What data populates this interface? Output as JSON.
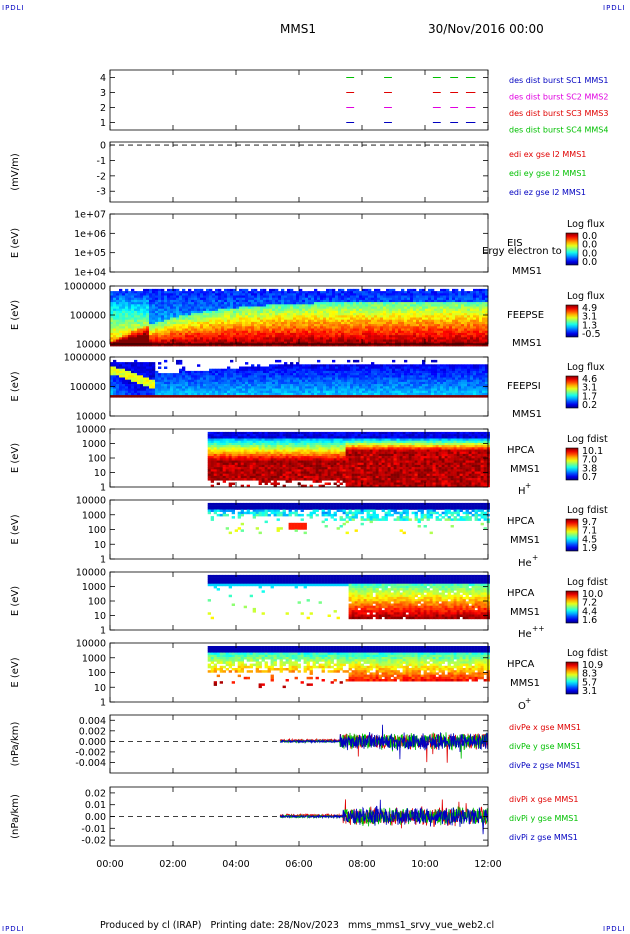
{
  "corner_labels": {
    "tl": "IPDLI",
    "tr": "IPDLI",
    "bl": "IPDLI",
    "br": "IPDLI"
  },
  "header": {
    "spacecraft": "MMS1",
    "date": "30/Nov/2016 00:00"
  },
  "footer": {
    "text": "Produced by cl (IRAP)   Printing date: 28/Nov/2023   mms_mms1_srvy_vue_web2.cl"
  },
  "colors": {
    "red": "#e00000",
    "magenta": "#e000e0",
    "green": "#00c000",
    "blue": "#0000c0"
  },
  "x_axis": {
    "range_hours": [
      0,
      12
    ],
    "ticks": [
      {
        "h": 0,
        "label": "00:00"
      },
      {
        "h": 2,
        "label": "02:00"
      },
      {
        "h": 4,
        "label": "04:00"
      },
      {
        "h": 6,
        "label": "06:00"
      },
      {
        "h": 8,
        "label": "08:00"
      },
      {
        "h": 10,
        "label": "10:00"
      },
      {
        "h": 12,
        "label": "12:00"
      }
    ]
  },
  "chart_data": [
    {
      "id": "burst",
      "type": "line",
      "ylabel": "",
      "ylim": [
        0.5,
        4.5
      ],
      "ticks": [
        {
          "v": 4,
          "label": "4"
        },
        {
          "v": 3,
          "label": "3"
        },
        {
          "v": 2,
          "label": "2"
        },
        {
          "v": 1,
          "label": "1"
        }
      ],
      "legend": [
        {
          "text": "des dist burst SC1 MMS1",
          "color": "#0000c0"
        },
        {
          "text": "des dist burst SC2 MMS2",
          "color": "#e000e0"
        },
        {
          "text": "des dist burst SC3 MMS3",
          "color": "#e00000"
        },
        {
          "text": "des dist burst SC4 MMS4",
          "color": "#00c000"
        }
      ],
      "series": [
        {
          "level": 1,
          "color": "#0000c0",
          "segments": [
            [
              7.5,
              7.75
            ],
            [
              8.7,
              8.95
            ],
            [
              10.25,
              10.5
            ],
            [
              10.8,
              11.05
            ],
            [
              11.3,
              11.6
            ]
          ]
        },
        {
          "level": 2,
          "color": "#e000e0",
          "segments": [
            [
              7.5,
              7.75
            ],
            [
              8.7,
              8.95
            ],
            [
              10.25,
              10.5
            ],
            [
              10.8,
              11.05
            ],
            [
              11.3,
              11.6
            ]
          ]
        },
        {
          "level": 3,
          "color": "#e00000",
          "segments": [
            [
              7.5,
              7.75
            ],
            [
              8.7,
              8.95
            ],
            [
              10.25,
              10.5
            ],
            [
              10.8,
              11.05
            ],
            [
              11.3,
              11.6
            ]
          ]
        },
        {
          "level": 4,
          "color": "#00c000",
          "segments": [
            [
              7.5,
              7.75
            ],
            [
              8.7,
              8.95
            ],
            [
              10.25,
              10.5
            ],
            [
              10.8,
              11.05
            ],
            [
              11.3,
              11.6
            ]
          ]
        }
      ]
    },
    {
      "id": "edi",
      "type": "line",
      "ylabel": "(mV/m)",
      "ylim": [
        -3.7,
        0.2
      ],
      "ticks": [
        {
          "v": 0,
          "label": "0"
        },
        {
          "v": -1,
          "label": "-1"
        },
        {
          "v": -2,
          "label": "-2"
        },
        {
          "v": -3,
          "label": "-3"
        }
      ],
      "dashed_at": 0,
      "legend": [
        {
          "text": "edi ex gse l2 MMS1",
          "color": "#e00000"
        },
        {
          "text": "edi ey gse l2 MMS1",
          "color": "#00c000"
        },
        {
          "text": "edi ez gse l2 MMS1",
          "color": "#0000c0"
        }
      ]
    },
    {
      "id": "eis",
      "type": "heatmap",
      "ylabel": "E (eV)",
      "scale": "log",
      "ylim": [
        10000,
        10000000
      ],
      "ticks": [
        {
          "v": 10000000,
          "label": "1e+07"
        },
        {
          "v": 1000000,
          "label": "1e+06"
        },
        {
          "v": 100000,
          "label": "1e+05"
        },
        {
          "v": 10000,
          "label": "1e+04"
        }
      ],
      "labels": [
        "EIS",
        "MMS1"
      ],
      "overlay": "Ergy electron to",
      "cb_title": "Log flux",
      "cb_ticks": [
        "0.0",
        "0.0",
        "0.0",
        "0.0"
      ],
      "fill": null
    },
    {
      "id": "feepse",
      "type": "heatmap",
      "ylabel": "E (eV)",
      "scale": "log",
      "ylim": [
        10000,
        1000000
      ],
      "ticks": [
        {
          "v": 1000000,
          "label": "1000000"
        },
        {
          "v": 100000,
          "label": "100000"
        },
        {
          "v": 10000,
          "label": "10000"
        }
      ],
      "labels": [
        "FEEPSE",
        "MMS1"
      ],
      "cb_title": "Log flux",
      "cb_ticks": [
        "4.9",
        "3.1",
        "1.3",
        "-0.5"
      ],
      "fill": {
        "start": 0,
        "end": 12,
        "top": 0.05,
        "bottom": 1.0,
        "pattern": "decay"
      }
    },
    {
      "id": "feepsi",
      "type": "heatmap",
      "ylabel": "E (eV)",
      "scale": "log",
      "ylim": [
        10000,
        1000000
      ],
      "ticks": [
        {
          "v": 1000000,
          "label": "1000000"
        },
        {
          "v": 100000,
          "label": "100000"
        },
        {
          "v": 10000,
          "label": "10000"
        }
      ],
      "labels": [
        "FEEPSI",
        "MMS1"
      ],
      "cb_title": "Log flux",
      "cb_ticks": [
        "4.6",
        "3.1",
        "1.7",
        "0.2"
      ],
      "fill": {
        "start": 0,
        "end": 12,
        "top": 0.05,
        "bottom": 0.66,
        "pattern": "ion"
      }
    },
    {
      "id": "hpca_h",
      "type": "heatmap",
      "ylabel": "E (eV)",
      "scale": "log",
      "ylim": [
        1,
        10000
      ],
      "ticks": [
        {
          "v": 10000,
          "label": "10000"
        },
        {
          "v": 1000,
          "label": "1000"
        },
        {
          "v": 100,
          "label": "100"
        },
        {
          "v": 10,
          "label": "10"
        },
        {
          "v": 1,
          "label": "1"
        }
      ],
      "labels": [
        "HPCA",
        "MMS1"
      ],
      "species": "H",
      "charge": "+",
      "cb_title": "Log fdist",
      "cb_ticks": [
        "10.1",
        "7.0",
        "3.8",
        "0.7"
      ],
      "fill": {
        "start": 3.1,
        "end": 12,
        "top": 0.05,
        "bottom": 0.97,
        "pattern": "hot"
      }
    },
    {
      "id": "hpca_he",
      "type": "heatmap",
      "ylabel": "E (eV)",
      "scale": "log",
      "ylim": [
        1,
        10000
      ],
      "ticks": [
        {
          "v": 10000,
          "label": "10000"
        },
        {
          "v": 1000,
          "label": "1000"
        },
        {
          "v": 100,
          "label": "100"
        },
        {
          "v": 10,
          "label": "10"
        },
        {
          "v": 1,
          "label": "1"
        }
      ],
      "labels": [
        "HPCA",
        "MMS1"
      ],
      "species": "He",
      "charge": "+",
      "cb_title": "Log fdist",
      "cb_ticks": [
        "9.7",
        "7.1",
        "4.5",
        "1.9"
      ],
      "fill": {
        "start": 3.1,
        "end": 12,
        "top": 0.05,
        "bottom": 0.55,
        "pattern": "sparse"
      }
    },
    {
      "id": "hpca_hepp",
      "type": "heatmap",
      "ylabel": "E (eV)",
      "scale": "log",
      "ylim": [
        1,
        10000
      ],
      "ticks": [
        {
          "v": 10000,
          "label": "10000"
        },
        {
          "v": 1000,
          "label": "1000"
        },
        {
          "v": 100,
          "label": "100"
        },
        {
          "v": 10,
          "label": "10"
        },
        {
          "v": 1,
          "label": "1"
        }
      ],
      "labels": [
        "HPCA",
        "MMS1"
      ],
      "species": "He",
      "charge": "++",
      "cb_title": "Log fdist",
      "cb_ticks": [
        "10.0",
        "7.2",
        "4.4",
        "1.6"
      ],
      "fill": {
        "start": 3.1,
        "end": 12,
        "top": 0.05,
        "bottom": 0.8,
        "pattern": "hepp"
      }
    },
    {
      "id": "hpca_o",
      "type": "heatmap",
      "ylabel": "E (eV)",
      "scale": "log",
      "ylim": [
        1,
        10000
      ],
      "ticks": [
        {
          "v": 10000,
          "label": "10000"
        },
        {
          "v": 1000,
          "label": "1000"
        },
        {
          "v": 100,
          "label": "100"
        },
        {
          "v": 10,
          "label": "10"
        },
        {
          "v": 1,
          "label": "1"
        }
      ],
      "labels": [
        "HPCA",
        "MMS1"
      ],
      "species": "O",
      "charge": "+",
      "cb_title": "Log fdist",
      "cb_ticks": [
        "10.9",
        "8.3",
        "5.7",
        "3.1"
      ],
      "fill": {
        "start": 3.1,
        "end": 12,
        "top": 0.05,
        "bottom": 0.75,
        "pattern": "oxy"
      }
    },
    {
      "id": "divpe",
      "type": "line",
      "ylabel": "(nPa/km)",
      "ylim": [
        -0.006,
        0.005
      ],
      "ticks": [
        {
          "v": 0.004,
          "label": "0.004"
        },
        {
          "v": 0.002,
          "label": "0.002"
        },
        {
          "v": 0,
          "label": "0.000"
        },
        {
          "v": -0.002,
          "label": "-0.002"
        },
        {
          "v": -0.004,
          "label": "-0.004"
        }
      ],
      "dashed_at": 0,
      "legend": [
        {
          "text": "divPe x gse MMS1",
          "color": "#e00000"
        },
        {
          "text": "divPe y gse MMS1",
          "color": "#00c000"
        },
        {
          "text": "divPe z gse MMS1",
          "color": "#0000c0"
        }
      ],
      "noise": {
        "start": 5.4,
        "quiet_end": 7.3,
        "quiet_amp": 0.00025,
        "active_amp": 0.0018
      }
    },
    {
      "id": "divpi",
      "type": "line",
      "ylabel": "(nPa/km)",
      "ylim": [
        -0.025,
        0.025
      ],
      "ticks": [
        {
          "v": 0.02,
          "label": "0.02"
        },
        {
          "v": 0.01,
          "label": "0.01"
        },
        {
          "v": 0,
          "label": "0.00"
        },
        {
          "v": -0.01,
          "label": "-0.01"
        },
        {
          "v": -0.02,
          "label": "-0.02"
        }
      ],
      "dashed_at": 0,
      "legend": [
        {
          "text": "divPi x gse MMS1",
          "color": "#e00000"
        },
        {
          "text": "divPi y gse MMS1",
          "color": "#00c000"
        },
        {
          "text": "divPi z gse MMS1",
          "color": "#0000c0"
        }
      ],
      "noise": {
        "start": 5.4,
        "quiet_end": 7.4,
        "quiet_amp": 0.0012,
        "active_amp": 0.009
      }
    }
  ]
}
